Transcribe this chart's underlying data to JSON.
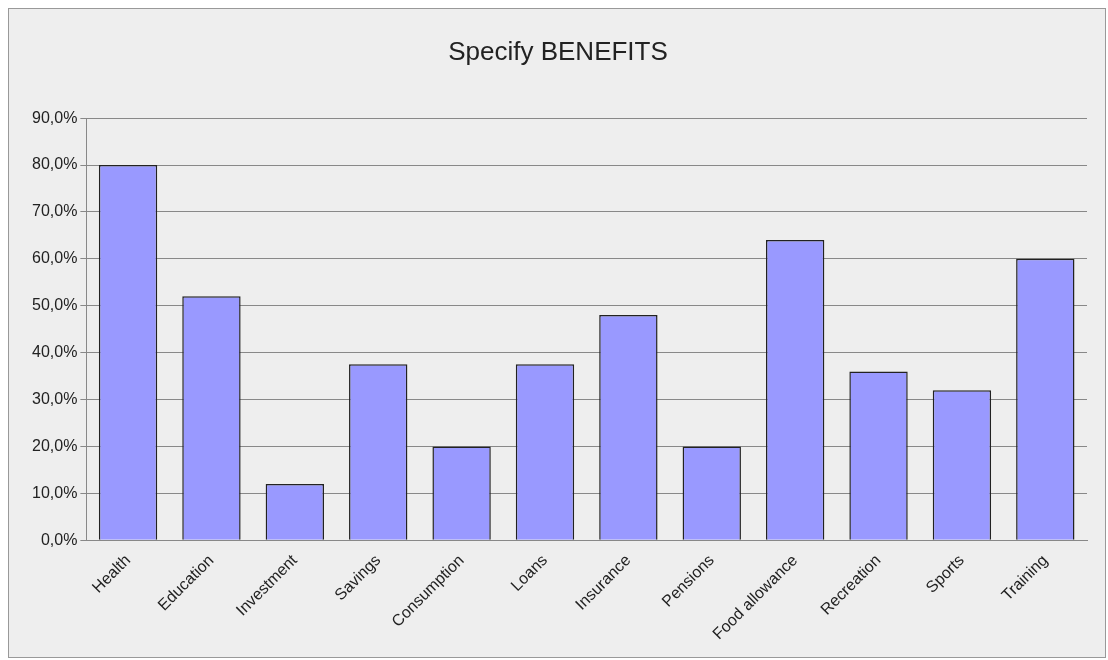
{
  "chart_data": {
    "type": "bar",
    "title": "Specify BENEFITS",
    "categories": [
      "Health",
      "Education",
      "Investment",
      "Savings",
      "Consumption",
      "Loans",
      "Insurance",
      "Pensions",
      "Food allowance",
      "Recreation",
      "Sports",
      "Training"
    ],
    "values": [
      80,
      52,
      12,
      37.5,
      20,
      37.5,
      48,
      20,
      64,
      36,
      32,
      60
    ],
    "color": "#9999ff",
    "ylim": [
      0,
      90
    ],
    "yticks": [
      {
        "value": 0,
        "label": "0,0%"
      },
      {
        "value": 10,
        "label": "10,0%"
      },
      {
        "value": 20,
        "label": "20,0%"
      },
      {
        "value": 30,
        "label": "30,0%"
      },
      {
        "value": 40,
        "label": "40,0%"
      },
      {
        "value": 50,
        "label": "50,0%"
      },
      {
        "value": 60,
        "label": "60,0%"
      },
      {
        "value": 70,
        "label": "70,0%"
      },
      {
        "value": 80,
        "label": "80,0%"
      },
      {
        "value": 90,
        "label": "90,0%"
      }
    ],
    "grid": "y"
  }
}
